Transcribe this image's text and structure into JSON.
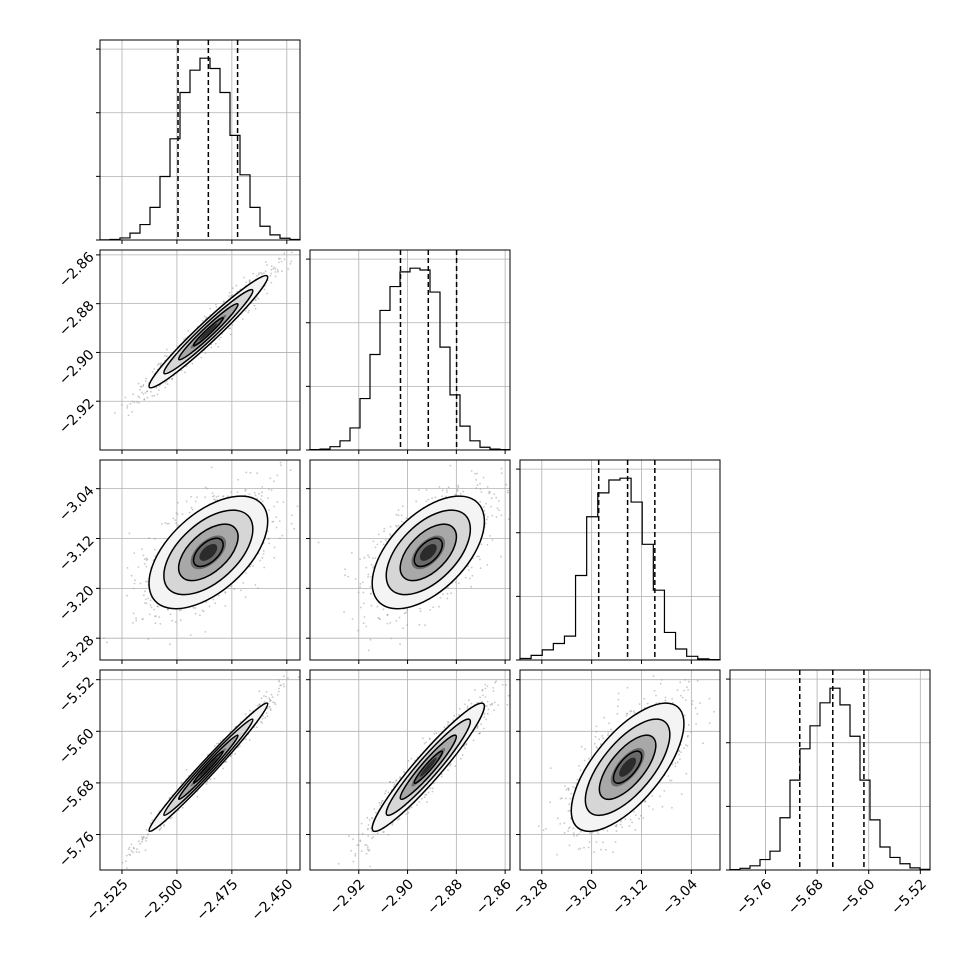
{
  "chart_data": {
    "type": "corner",
    "parameters": [
      {
        "range": [
          -2.535,
          -2.444
        ],
        "ticks": [
          -2.525,
          -2.5,
          -2.475,
          -2.45
        ],
        "tick_labels": [
          "−2.525",
          "−2.500",
          "−2.475",
          "−2.450"
        ],
        "quantiles": [
          -2.4995,
          -2.4857,
          -2.4724
        ],
        "hist_counts": [
          1,
          3,
          12,
          40,
          90,
          190,
          370,
          590,
          860,
          990,
          1060,
          1000,
          860,
          610,
          380,
          190,
          80,
          30,
          10,
          3
        ]
      },
      {
        "range": [
          -2.94,
          -2.858
        ],
        "ticks": [
          -2.92,
          -2.9,
          -2.88,
          -2.86
        ],
        "tick_labels": [
          "−2.92",
          "−2.90",
          "−2.88",
          "−2.86"
        ],
        "quantiles": [
          -2.9029,
          -2.8915,
          -2.8799
        ],
        "hist_counts": [
          2,
          5,
          18,
          50,
          120,
          280,
          520,
          760,
          890,
          970,
          990,
          980,
          860,
          560,
          300,
          130,
          50,
          15,
          5,
          2
        ]
      },
      {
        "range": [
          -3.315,
          -2.994
        ],
        "ticks": [
          -3.28,
          -3.2,
          -3.12,
          -3.04
        ],
        "tick_labels": [
          "−3.28",
          "−3.20",
          "−3.12",
          "−3.04"
        ],
        "quantiles": [
          -3.1887,
          -3.1423,
          -3.0986
        ],
        "hist_counts": [
          8,
          25,
          55,
          90,
          130,
          460,
          780,
          910,
          980,
          990,
          860,
          630,
          380,
          150,
          60,
          20,
          6,
          2
        ]
      },
      {
        "range": [
          -5.815,
          -5.505
        ],
        "ticks": [
          -5.76,
          -5.68,
          -5.6,
          -5.52
        ],
        "tick_labels": [
          "−5.76",
          "−5.68",
          "−5.60",
          "−5.52"
        ],
        "quantiles": [
          -5.7069,
          -5.6557,
          -5.6074
        ],
        "hist_counts": [
          2,
          8,
          20,
          50,
          90,
          250,
          430,
          580,
          690,
          800,
          870,
          790,
          640,
          430,
          240,
          110,
          60,
          30,
          10,
          3
        ]
      }
    ],
    "mean": [
      -2.4857,
      -2.8915,
      -3.1423,
      -5.6557
    ],
    "std": [
      0.0135,
      0.0115,
      0.0452,
      0.0497
    ],
    "corr": [
      [
        1.0,
        0.97,
        0.55,
        0.985
      ],
      [
        0.97,
        1.0,
        0.55,
        0.95
      ],
      [
        0.55,
        0.55,
        1.0,
        0.68
      ],
      [
        0.985,
        0.95,
        0.68,
        1.0
      ]
    ],
    "contour_sigma_levels": [
      0.5,
      1.0,
      1.5,
      2.0
    ],
    "grid": true,
    "colors": {
      "line": "#000000",
      "grid": "#b0b0b0",
      "scatter": "#9a9a9a"
    }
  }
}
